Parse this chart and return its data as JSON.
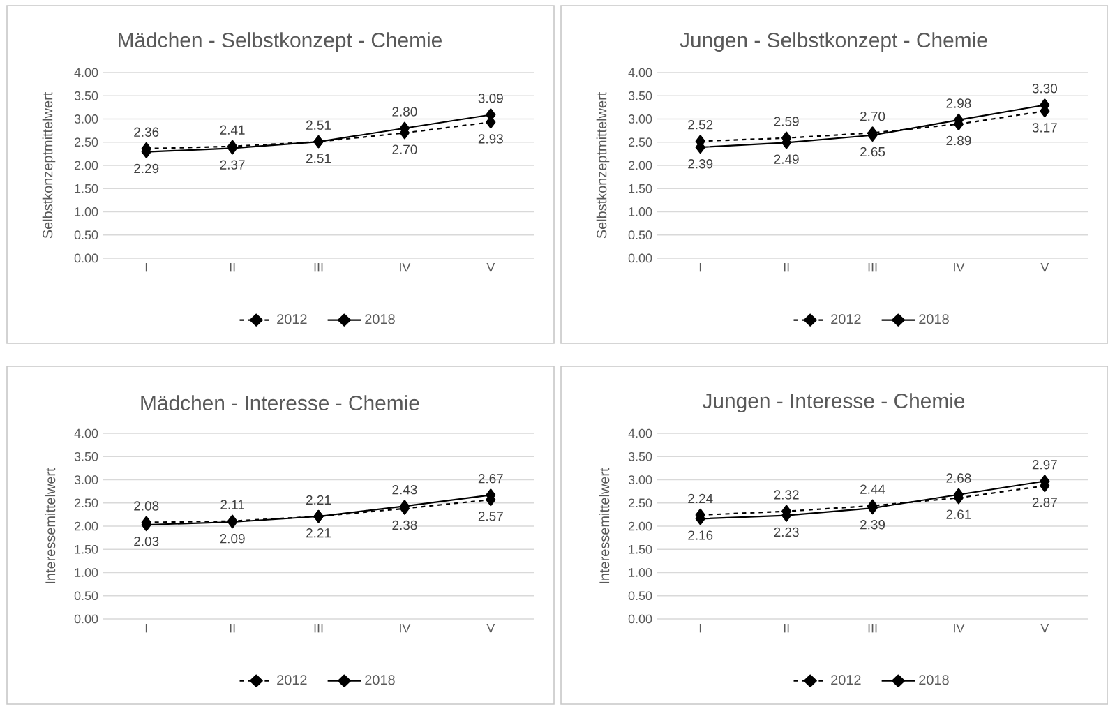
{
  "chart_data": [
    {
      "type": "line",
      "title": "Mädchen - Selbstkonzept - Chemie",
      "ylabel": "Selbstkonzeptmittelwert",
      "categories": [
        "I",
        "II",
        "III",
        "IV",
        "V"
      ],
      "series": [
        {
          "name": "2012",
          "color": "#000000",
          "line_style": "dashed",
          "values": [
            2.36,
            2.41,
            2.51,
            2.7,
            2.93
          ],
          "value_labels": [
            "2.36",
            "2.41",
            "2.51",
            "2.70",
            "2.93"
          ]
        },
        {
          "name": "2018",
          "color": "#000000",
          "line_style": "solid",
          "values": [
            2.29,
            2.37,
            2.51,
            2.8,
            3.09
          ],
          "value_labels": [
            "2.29",
            "2.37",
            "2.51",
            "2.80",
            "3.09"
          ]
        }
      ],
      "ylim": [
        0,
        4
      ],
      "yticks": [
        {
          "value": 0,
          "label": "0.00"
        },
        {
          "value": 0.5,
          "label": "0.50"
        },
        {
          "value": 1,
          "label": "1.00"
        },
        {
          "value": 1.5,
          "label": "1.50"
        },
        {
          "value": 2,
          "label": "2.00"
        },
        {
          "value": 2.5,
          "label": "2.50"
        },
        {
          "value": 3,
          "label": "3.00"
        },
        {
          "value": 3.5,
          "label": "3.50"
        },
        {
          "value": 4,
          "label": "4.00"
        }
      ],
      "grid": "y",
      "legend": "bottom",
      "marker": "diamond"
    },
    {
      "type": "line",
      "title": "Jungen - Selbstkonzept - Chemie",
      "ylabel": "Selbstkonzeptmittelwert",
      "categories": [
        "I",
        "II",
        "III",
        "IV",
        "V"
      ],
      "series": [
        {
          "name": "2012",
          "color": "#000000",
          "line_style": "dashed",
          "values": [
            2.52,
            2.59,
            2.7,
            2.89,
            3.17
          ],
          "value_labels": [
            "2.52",
            "2.59",
            "2.70",
            "2.89",
            "3.17"
          ]
        },
        {
          "name": "2018",
          "color": "#000000",
          "line_style": "solid",
          "values": [
            2.39,
            2.49,
            2.65,
            2.98,
            3.3
          ],
          "value_labels": [
            "2.39",
            "2.49",
            "2.65",
            "2.98",
            "3.30"
          ]
        }
      ],
      "ylim": [
        0,
        4
      ],
      "yticks": [
        {
          "value": 0,
          "label": "0.00"
        },
        {
          "value": 0.5,
          "label": "0.50"
        },
        {
          "value": 1,
          "label": "1.00"
        },
        {
          "value": 1.5,
          "label": "1.50"
        },
        {
          "value": 2,
          "label": "2.00"
        },
        {
          "value": 2.5,
          "label": "2.50"
        },
        {
          "value": 3,
          "label": "3.00"
        },
        {
          "value": 3.5,
          "label": "3.50"
        },
        {
          "value": 4,
          "label": "4.00"
        }
      ],
      "grid": "y",
      "legend": "bottom",
      "marker": "diamond"
    },
    {
      "type": "line",
      "title": "Mädchen - Interesse - Chemie",
      "ylabel": "Interessemittelwert",
      "categories": [
        "I",
        "II",
        "III",
        "IV",
        "V"
      ],
      "series": [
        {
          "name": "2012",
          "color": "#000000",
          "line_style": "dashed",
          "values": [
            2.08,
            2.11,
            2.21,
            2.38,
            2.57
          ],
          "value_labels": [
            "2.08",
            "2.11",
            "2.21",
            "2.38",
            "2.57"
          ]
        },
        {
          "name": "2018",
          "color": "#000000",
          "line_style": "solid",
          "values": [
            2.03,
            2.09,
            2.21,
            2.43,
            2.67
          ],
          "value_labels": [
            "2.03",
            "2.09",
            "2.21",
            "2.43",
            "2.67"
          ]
        }
      ],
      "ylim": [
        0,
        4
      ],
      "yticks": [
        {
          "value": 0,
          "label": "0.00"
        },
        {
          "value": 0.5,
          "label": "0.50"
        },
        {
          "value": 1,
          "label": "1.00"
        },
        {
          "value": 1.5,
          "label": "1.50"
        },
        {
          "value": 2,
          "label": "2.00"
        },
        {
          "value": 2.5,
          "label": "2.50"
        },
        {
          "value": 3,
          "label": "3.00"
        },
        {
          "value": 3.5,
          "label": "3.50"
        },
        {
          "value": 4,
          "label": "4.00"
        }
      ],
      "grid": "y",
      "legend": "bottom",
      "marker": "diamond"
    },
    {
      "type": "line",
      "title": "Jungen - Interesse - Chemie",
      "ylabel": "Interessemittelwert",
      "categories": [
        "I",
        "II",
        "III",
        "IV",
        "V"
      ],
      "series": [
        {
          "name": "2012",
          "color": "#000000",
          "line_style": "dashed",
          "values": [
            2.24,
            2.32,
            2.44,
            2.61,
            2.87
          ],
          "value_labels": [
            "2.24",
            "2.32",
            "2.44",
            "2.61",
            "2.87"
          ]
        },
        {
          "name": "2018",
          "color": "#000000",
          "line_style": "solid",
          "values": [
            2.16,
            2.23,
            2.39,
            2.68,
            2.97
          ],
          "value_labels": [
            "2.16",
            "2.23",
            "2.39",
            "2.68",
            "2.97"
          ]
        }
      ],
      "ylim": [
        0,
        4
      ],
      "yticks": [
        {
          "value": 0,
          "label": "0.00"
        },
        {
          "value": 0.5,
          "label": "0.50"
        },
        {
          "value": 1,
          "label": "1.00"
        },
        {
          "value": 1.5,
          "label": "1.50"
        },
        {
          "value": 2,
          "label": "2.00"
        },
        {
          "value": 2.5,
          "label": "2.50"
        },
        {
          "value": 3,
          "label": "3.00"
        },
        {
          "value": 3.5,
          "label": "3.50"
        },
        {
          "value": 4,
          "label": "4.00"
        }
      ],
      "grid": "y",
      "legend": "bottom",
      "marker": "diamond"
    }
  ]
}
